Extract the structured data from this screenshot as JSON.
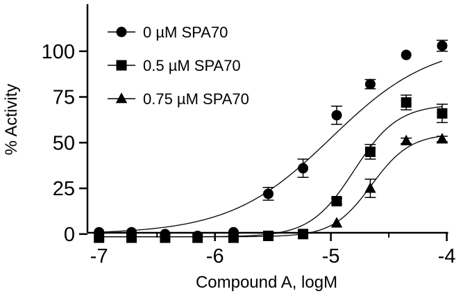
{
  "chart_data": {
    "type": "scatter",
    "title": "",
    "xlabel": "Compound A, logM",
    "ylabel": "% Activity",
    "xlim": [
      -7.1,
      -3.95
    ],
    "ylim": [
      -5,
      125
    ],
    "xticks": [
      -7,
      -6,
      -5,
      -4
    ],
    "xtick_labels": [
      "-7",
      "-6",
      "-5",
      "-4"
    ],
    "yticks": [
      0,
      25,
      50,
      75,
      100
    ],
    "ytick_labels": [
      "0",
      "25",
      "50",
      "75",
      "100"
    ],
    "grid": false,
    "legend_position": "top-left",
    "x": [
      -7.0,
      -6.72,
      -6.43,
      -6.15,
      -5.84,
      -5.54,
      -5.24,
      -4.95,
      -4.66,
      -4.35,
      -4.04
    ],
    "series": [
      {
        "name": "0 µM SPA70",
        "marker": "circle",
        "color": "#000000",
        "values": [
          1,
          1,
          0,
          -1,
          1,
          22,
          36,
          65,
          82,
          98,
          103
        ],
        "errors": [
          1,
          1,
          1,
          1,
          1,
          3.5,
          5,
          5,
          2.5,
          1,
          3
        ],
        "fit": {
          "bottom": 0,
          "top": 105,
          "logEC50": -5.0,
          "hill": 1.0
        }
      },
      {
        "name": "0.5 µM SPA70",
        "marker": "square",
        "color": "#000000",
        "values": [
          -2,
          -2,
          -2,
          -2,
          -2,
          -1,
          0,
          18,
          45,
          72,
          66
        ],
        "errors": [
          1,
          1,
          1,
          1,
          1,
          1,
          1,
          1.5,
          4,
          4,
          5
        ],
        "fit": {
          "bottom": -1.5,
          "top": 71,
          "logEC50": -4.8,
          "hill": 2.3
        }
      },
      {
        "name": "0.75 µM SPA70",
        "marker": "triangle",
        "color": "#000000",
        "values": [
          null,
          null,
          null,
          null,
          null,
          null,
          null,
          6,
          25,
          51,
          52
        ],
        "errors": [
          0,
          0,
          0,
          0,
          0,
          0,
          0,
          1,
          5,
          1.5,
          1.5
        ],
        "fit": {
          "bottom": -1.5,
          "top": 55,
          "logEC50": -4.65,
          "hill": 2.6
        }
      }
    ]
  }
}
